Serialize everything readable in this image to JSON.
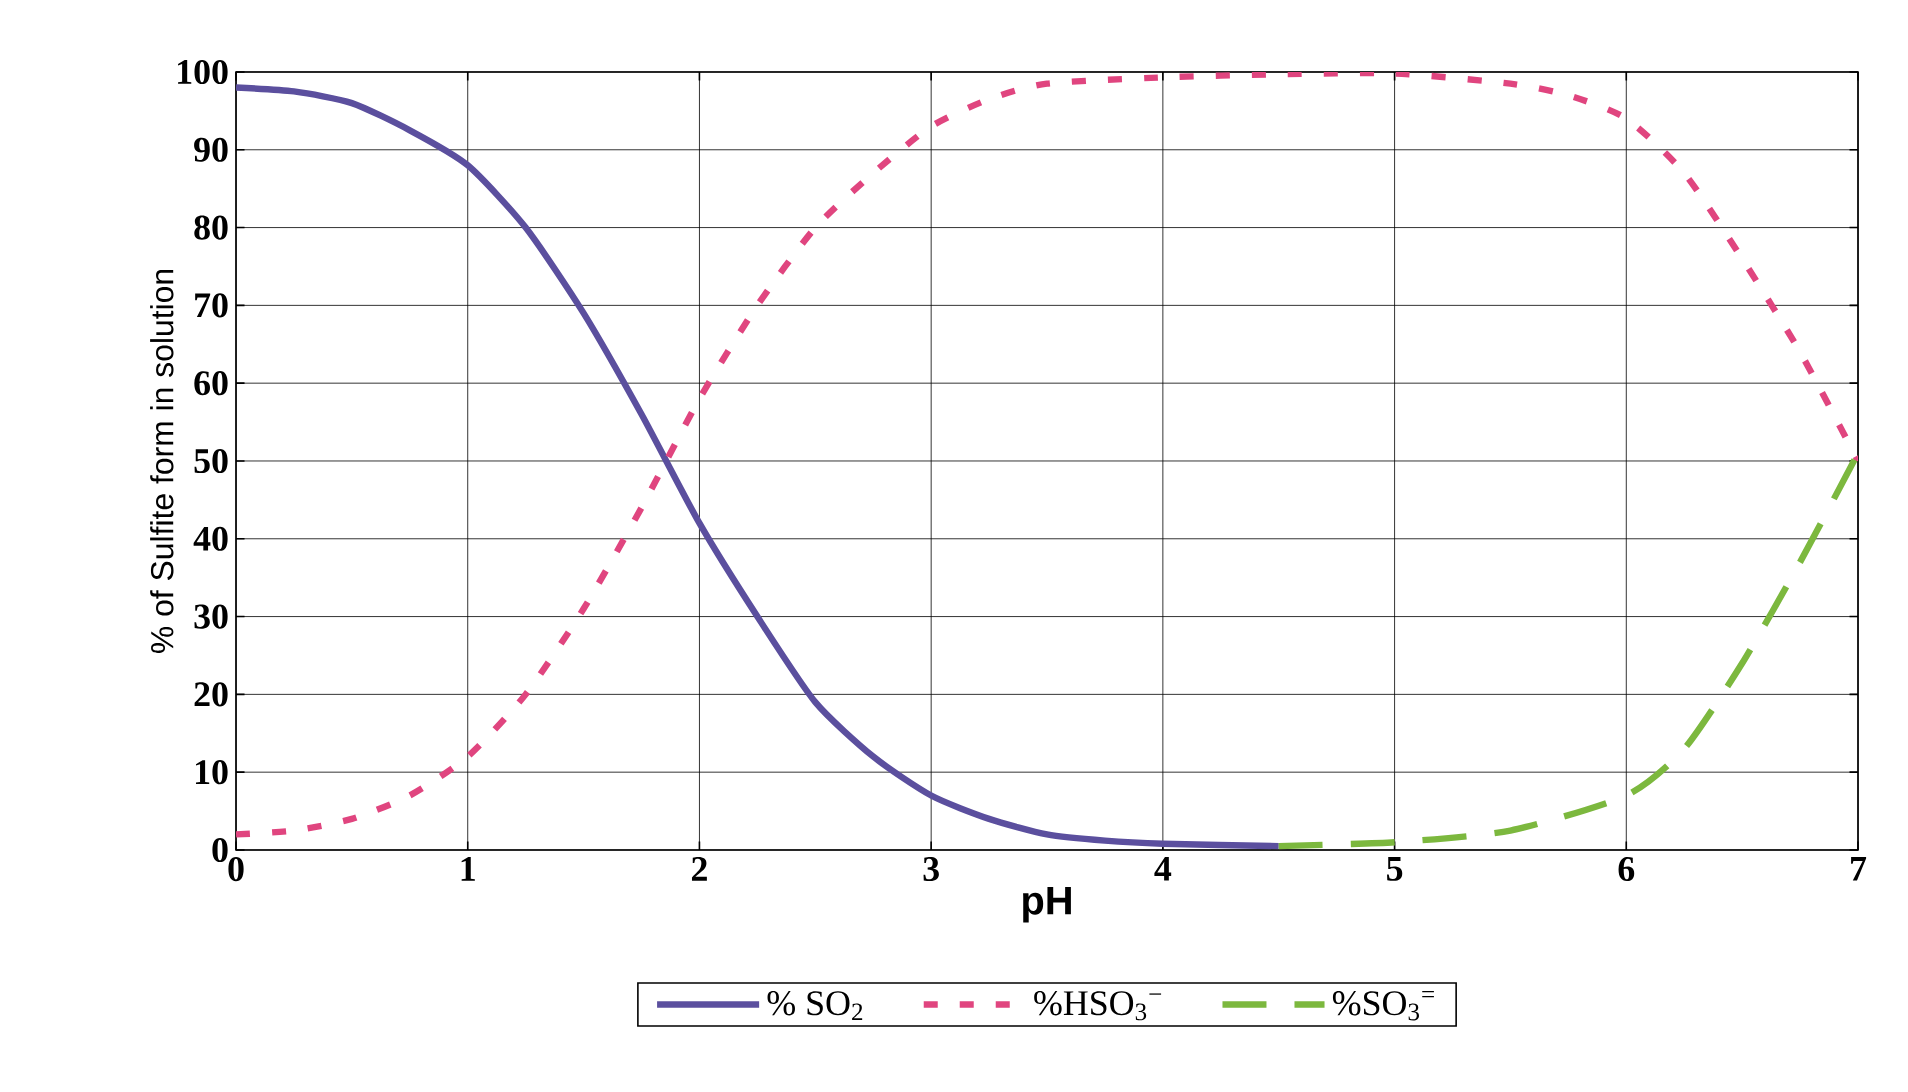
{
  "chart_data": {
    "type": "line",
    "xlabel": "pH",
    "ylabel": "% of Sulfite form in solution",
    "xlim": [
      0,
      7
    ],
    "ylim": [
      0,
      100
    ],
    "xticks": [
      0,
      1,
      2,
      3,
      4,
      5,
      6,
      7
    ],
    "yticks": [
      0,
      10,
      20,
      30,
      40,
      50,
      60,
      70,
      80,
      90,
      100
    ],
    "grid": true,
    "legend": "bottom",
    "series": [
      {
        "name": "% SO$_{2}$",
        "color": "#5b4f9e",
        "line_style": "solid",
        "x": [
          0,
          0.25,
          0.5,
          0.75,
          1,
          1.25,
          1.5,
          1.75,
          2,
          2.25,
          2.5,
          2.75,
          3,
          3.25,
          3.5,
          3.75,
          4,
          4.5
        ],
        "values": [
          98,
          97.5,
          96,
          92.5,
          88,
          80,
          69,
          56,
          42,
          30,
          19,
          12,
          7,
          4,
          2,
          1.2,
          0.8,
          0.5
        ]
      },
      {
        "name": "%HSO$_{3}$$^{−}$",
        "color": "#e0457f",
        "line_style": "dotted",
        "x": [
          0,
          0.25,
          0.5,
          0.75,
          1,
          1.25,
          1.5,
          1.75,
          2,
          2.25,
          2.5,
          2.75,
          3,
          3.25,
          3.5,
          4,
          4.5,
          5,
          5.5,
          5.75,
          6,
          6.25,
          6.5,
          6.75,
          7
        ],
        "values": [
          2,
          2.5,
          4,
          7,
          12,
          20,
          31,
          44,
          58,
          70,
          80,
          87,
          93,
          96.5,
          98.5,
          99.3,
          99.7,
          99.8,
          98.5,
          97,
          94,
          87,
          76,
          64,
          50
        ]
      },
      {
        "name": "%SO$_{3}$$^{=}$",
        "color": "#7cb83e",
        "line_style": "dashed",
        "x": [
          4.5,
          5,
          5.5,
          6,
          6.25,
          6.5,
          6.75,
          7
        ],
        "values": [
          0.5,
          1,
          2.5,
          7,
          13,
          24,
          37,
          51
        ]
      }
    ]
  }
}
